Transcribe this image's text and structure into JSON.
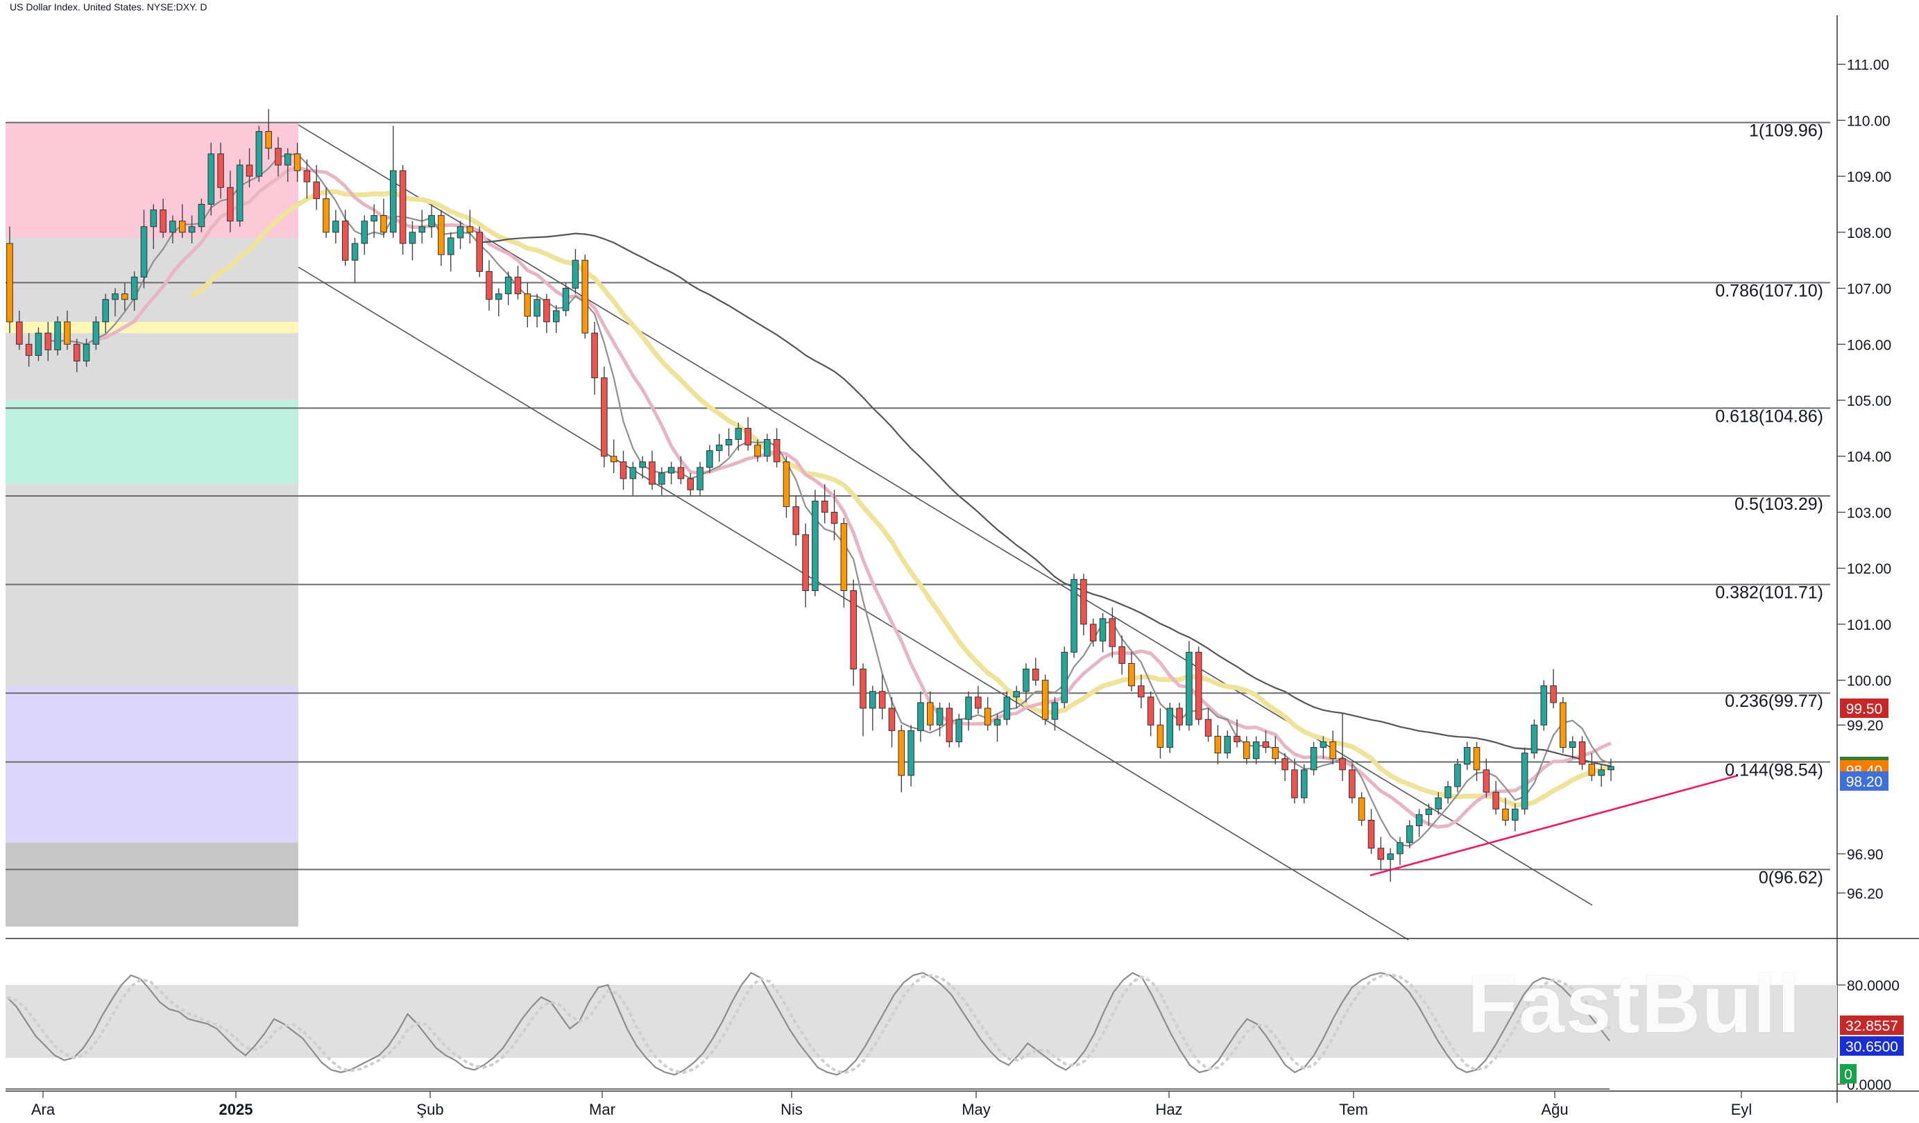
{
  "header": {
    "symbol_title": "US Dollar Index. United States. NYSE:DXY. D"
  },
  "watermark": "FastBull",
  "chart_data": {
    "type": "candlestick",
    "title": "US Dollar Index. United States. NYSE:DXY. D",
    "y_range": [
      95.4,
      111.9
    ],
    "price_axis_ticks": [
      {
        "value": 111.0,
        "label": "111.00"
      },
      {
        "value": 110.0,
        "label": "110.00"
      },
      {
        "value": 109.0,
        "label": "109.00"
      },
      {
        "value": 108.0,
        "label": "108.00"
      },
      {
        "value": 107.0,
        "label": "107.00"
      },
      {
        "value": 106.0,
        "label": "106.00"
      },
      {
        "value": 105.0,
        "label": "105.00"
      },
      {
        "value": 104.0,
        "label": "104.00"
      },
      {
        "value": 103.0,
        "label": "103.00"
      },
      {
        "value": 102.0,
        "label": "102.00"
      },
      {
        "value": 101.0,
        "label": "101.00"
      },
      {
        "value": 100.0,
        "label": "100.00"
      },
      {
        "value": 99.2,
        "label": "99.20"
      },
      {
        "value": 96.9,
        "label": "96.90"
      },
      {
        "value": 96.2,
        "label": "96.20"
      }
    ],
    "time_axis": [
      {
        "label": "Ara",
        "bold": false
      },
      {
        "label": "2025",
        "bold": true
      },
      {
        "label": "Şub",
        "bold": false
      },
      {
        "label": "Mar",
        "bold": false
      },
      {
        "label": "Nis",
        "bold": false
      },
      {
        "label": "May",
        "bold": false
      },
      {
        "label": "Haz",
        "bold": false
      },
      {
        "label": "Tem",
        "bold": false
      },
      {
        "label": "Ağu",
        "bold": false
      },
      {
        "label": "Eyl",
        "bold": false
      }
    ],
    "fibonacci": [
      {
        "ratio": "1",
        "value": 109.96,
        "label": "1(109.96)"
      },
      {
        "ratio": "0.786",
        "value": 107.1,
        "label": "0.786(107.10)"
      },
      {
        "ratio": "0.618",
        "value": 104.86,
        "label": "0.618(104.86)"
      },
      {
        "ratio": "0.5",
        "value": 103.29,
        "label": "0.5(103.29)"
      },
      {
        "ratio": "0.382",
        "value": 101.71,
        "label": "0.382(101.71)"
      },
      {
        "ratio": "0.236",
        "value": 99.77,
        "label": "0.236(99.77)"
      },
      {
        "ratio": "0.144",
        "value": 98.54,
        "label": "0.144(98.54)"
      },
      {
        "ratio": "0",
        "value": 96.62,
        "label": "0(96.62)"
      }
    ],
    "price_badges": [
      {
        "label": "99.50",
        "value": 99.5,
        "color": "#c62828"
      },
      {
        "label": "98.46",
        "value": 98.46,
        "color": "#2e7d32"
      },
      {
        "label": "98.40",
        "value": 98.4,
        "color": "#f57c00"
      },
      {
        "label": "98.20",
        "value": 98.2,
        "color": "#3f6fd8"
      }
    ],
    "candle_colors": {
      "up": "#26a69a",
      "down": "#ef5350",
      "down_alt": "#ff9800"
    },
    "ohlc": [
      [
        107.8,
        108.1,
        106.2,
        106.4
      ],
      [
        106.4,
        106.6,
        105.9,
        106.0
      ],
      [
        106.0,
        106.2,
        105.6,
        105.8
      ],
      [
        105.8,
        106.3,
        105.7,
        106.2
      ],
      [
        106.2,
        106.4,
        105.7,
        105.9
      ],
      [
        105.9,
        106.5,
        105.8,
        106.4
      ],
      [
        106.4,
        106.6,
        105.9,
        106.0
      ],
      [
        106.0,
        106.1,
        105.5,
        105.7
      ],
      [
        105.7,
        106.1,
        105.6,
        106.0
      ],
      [
        106.0,
        106.5,
        105.9,
        106.4
      ],
      [
        106.4,
        106.9,
        106.2,
        106.8
      ],
      [
        106.8,
        107.0,
        106.5,
        106.9
      ],
      [
        106.9,
        107.1,
        106.6,
        106.8
      ],
      [
        106.8,
        107.3,
        106.6,
        107.2
      ],
      [
        107.2,
        108.4,
        107.0,
        108.1
      ],
      [
        108.1,
        108.5,
        107.7,
        108.4
      ],
      [
        108.4,
        108.6,
        107.9,
        108.0
      ],
      [
        108.0,
        108.3,
        107.8,
        108.2
      ],
      [
        108.2,
        108.5,
        107.9,
        108.0
      ],
      [
        108.0,
        108.3,
        107.8,
        108.1
      ],
      [
        108.1,
        108.6,
        108.0,
        108.5
      ],
      [
        108.5,
        109.6,
        108.3,
        109.4
      ],
      [
        109.4,
        109.6,
        108.6,
        108.8
      ],
      [
        108.8,
        109.1,
        108.0,
        108.2
      ],
      [
        108.2,
        109.3,
        108.1,
        109.2
      ],
      [
        109.2,
        109.5,
        108.8,
        109.0
      ],
      [
        109.0,
        109.9,
        108.9,
        109.8
      ],
      [
        109.8,
        110.2,
        109.3,
        109.5
      ],
      [
        109.5,
        109.7,
        109.0,
        109.2
      ],
      [
        109.2,
        109.5,
        108.9,
        109.4
      ],
      [
        109.4,
        109.6,
        108.9,
        109.1
      ],
      [
        109.1,
        109.3,
        108.6,
        108.9
      ],
      [
        108.9,
        109.2,
        108.4,
        108.6
      ],
      [
        108.6,
        108.8,
        107.9,
        108.0
      ],
      [
        108.0,
        108.4,
        107.8,
        108.2
      ],
      [
        108.2,
        108.4,
        107.4,
        107.5
      ],
      [
        107.5,
        107.9,
        107.1,
        107.8
      ],
      [
        107.8,
        108.3,
        107.6,
        108.2
      ],
      [
        108.2,
        108.5,
        107.9,
        108.3
      ],
      [
        108.3,
        108.6,
        107.9,
        108.0
      ],
      [
        108.0,
        109.9,
        107.9,
        109.1
      ],
      [
        109.1,
        109.2,
        107.6,
        107.8
      ],
      [
        107.8,
        108.2,
        107.5,
        108.0
      ],
      [
        108.0,
        108.4,
        107.8,
        108.1
      ],
      [
        108.1,
        108.5,
        107.9,
        108.3
      ],
      [
        108.3,
        108.4,
        107.4,
        107.6
      ],
      [
        107.6,
        108.0,
        107.3,
        107.9
      ],
      [
        107.9,
        108.2,
        107.7,
        108.1
      ],
      [
        108.1,
        108.4,
        107.8,
        108.0
      ],
      [
        108.0,
        108.1,
        107.2,
        107.3
      ],
      [
        107.3,
        107.5,
        106.6,
        106.8
      ],
      [
        106.8,
        107.0,
        106.5,
        106.9
      ],
      [
        106.9,
        107.3,
        106.7,
        107.2
      ],
      [
        107.2,
        107.4,
        106.8,
        106.9
      ],
      [
        106.9,
        107.1,
        106.3,
        106.5
      ],
      [
        106.5,
        106.9,
        106.3,
        106.8
      ],
      [
        106.8,
        106.9,
        106.2,
        106.4
      ],
      [
        106.4,
        106.7,
        106.2,
        106.6
      ],
      [
        106.6,
        107.1,
        106.5,
        107.0
      ],
      [
        107.0,
        107.7,
        106.9,
        107.5
      ],
      [
        107.5,
        107.6,
        106.1,
        106.2
      ],
      [
        106.2,
        106.4,
        105.1,
        105.4
      ],
      [
        105.4,
        105.6,
        103.8,
        104.0
      ],
      [
        104.0,
        104.3,
        103.7,
        103.9
      ],
      [
        103.9,
        104.1,
        103.4,
        103.6
      ],
      [
        103.6,
        103.9,
        103.3,
        103.8
      ],
      [
        103.8,
        104.0,
        103.6,
        103.9
      ],
      [
        103.9,
        104.1,
        103.4,
        103.5
      ],
      [
        103.5,
        103.8,
        103.3,
        103.7
      ],
      [
        103.7,
        103.9,
        103.5,
        103.8
      ],
      [
        103.8,
        104.0,
        103.5,
        103.6
      ],
      [
        103.6,
        103.7,
        103.3,
        103.4
      ],
      [
        103.4,
        103.9,
        103.3,
        103.8
      ],
      [
        103.8,
        104.2,
        103.7,
        104.1
      ],
      [
        104.1,
        104.4,
        103.9,
        104.2
      ],
      [
        104.2,
        104.5,
        104.0,
        104.3
      ],
      [
        104.3,
        104.6,
        104.1,
        104.5
      ],
      [
        104.5,
        104.7,
        104.1,
        104.2
      ],
      [
        104.2,
        104.3,
        103.9,
        104.0
      ],
      [
        104.0,
        104.4,
        103.9,
        104.3
      ],
      [
        104.3,
        104.5,
        103.8,
        103.9
      ],
      [
        103.9,
        104.0,
        102.9,
        103.1
      ],
      [
        103.1,
        103.3,
        102.4,
        102.6
      ],
      [
        102.6,
        102.8,
        101.3,
        101.6
      ],
      [
        101.6,
        103.4,
        101.5,
        103.2
      ],
      [
        103.2,
        103.5,
        102.8,
        103.0
      ],
      [
        103.0,
        103.4,
        102.5,
        102.8
      ],
      [
        102.8,
        102.9,
        101.3,
        101.6
      ],
      [
        101.6,
        101.8,
        99.9,
        100.2
      ],
      [
        100.2,
        100.3,
        99.0,
        99.5
      ],
      [
        99.5,
        99.9,
        99.1,
        99.8
      ],
      [
        99.8,
        100.1,
        99.3,
        99.5
      ],
      [
        99.5,
        99.7,
        98.8,
        99.1
      ],
      [
        99.1,
        99.2,
        98.0,
        98.3
      ],
      [
        98.3,
        99.2,
        98.1,
        99.1
      ],
      [
        99.1,
        99.8,
        98.9,
        99.6
      ],
      [
        99.6,
        99.8,
        99.1,
        99.2
      ],
      [
        99.2,
        99.6,
        99.0,
        99.5
      ],
      [
        99.5,
        99.6,
        98.8,
        98.9
      ],
      [
        98.9,
        99.4,
        98.8,
        99.3
      ],
      [
        99.3,
        99.8,
        99.1,
        99.7
      ],
      [
        99.7,
        99.9,
        99.4,
        99.5
      ],
      [
        99.5,
        99.7,
        99.1,
        99.2
      ],
      [
        99.2,
        99.4,
        98.9,
        99.3
      ],
      [
        99.3,
        99.8,
        99.2,
        99.7
      ],
      [
        99.7,
        99.9,
        99.5,
        99.8
      ],
      [
        99.8,
        100.3,
        99.6,
        100.2
      ],
      [
        100.2,
        100.4,
        99.9,
        100.0
      ],
      [
        100.0,
        100.1,
        99.2,
        99.3
      ],
      [
        99.3,
        99.7,
        99.1,
        99.6
      ],
      [
        99.6,
        100.6,
        99.5,
        100.5
      ],
      [
        100.5,
        101.9,
        100.4,
        101.8
      ],
      [
        101.8,
        101.9,
        100.8,
        101.0
      ],
      [
        101.0,
        101.1,
        100.6,
        100.7
      ],
      [
        100.7,
        101.2,
        100.5,
        101.1
      ],
      [
        101.1,
        101.3,
        100.4,
        100.6
      ],
      [
        100.6,
        100.8,
        100.1,
        100.3
      ],
      [
        100.3,
        100.5,
        99.8,
        99.9
      ],
      [
        99.9,
        100.1,
        99.5,
        99.7
      ],
      [
        99.7,
        99.8,
        99.0,
        99.2
      ],
      [
        99.2,
        99.5,
        98.6,
        98.8
      ],
      [
        98.8,
        99.6,
        98.7,
        99.5
      ],
      [
        99.5,
        99.6,
        99.1,
        99.2
      ],
      [
        99.2,
        100.7,
        99.1,
        100.5
      ],
      [
        100.5,
        100.6,
        99.2,
        99.3
      ],
      [
        99.3,
        99.5,
        98.9,
        99.0
      ],
      [
        99.0,
        99.2,
        98.5,
        98.7
      ],
      [
        98.7,
        99.1,
        98.6,
        99.0
      ],
      [
        99.0,
        99.3,
        98.8,
        98.9
      ],
      [
        98.9,
        99.0,
        98.5,
        98.6
      ],
      [
        98.6,
        99.0,
        98.5,
        98.9
      ],
      [
        98.9,
        99.1,
        98.7,
        98.8
      ],
      [
        98.8,
        99.0,
        98.5,
        98.6
      ],
      [
        98.6,
        98.7,
        98.2,
        98.4
      ],
      [
        98.4,
        98.6,
        97.8,
        97.9
      ],
      [
        97.9,
        98.5,
        97.8,
        98.4
      ],
      [
        98.4,
        98.9,
        98.3,
        98.8
      ],
      [
        98.8,
        99.0,
        98.6,
        98.9
      ],
      [
        98.9,
        99.1,
        98.5,
        98.6
      ],
      [
        98.6,
        99.4,
        98.2,
        98.4
      ],
      [
        98.4,
        98.5,
        97.8,
        97.9
      ],
      [
        97.9,
        98.0,
        97.4,
        97.5
      ],
      [
        97.5,
        97.7,
        96.9,
        97.0
      ],
      [
        97.0,
        97.2,
        96.6,
        96.8
      ],
      [
        96.8,
        97.0,
        96.4,
        96.9
      ],
      [
        96.9,
        97.2,
        96.7,
        97.1
      ],
      [
        97.1,
        97.5,
        97.0,
        97.4
      ],
      [
        97.4,
        97.7,
        97.2,
        97.6
      ],
      [
        97.6,
        97.8,
        97.4,
        97.7
      ],
      [
        97.7,
        98.0,
        97.6,
        97.9
      ],
      [
        97.9,
        98.2,
        97.8,
        98.1
      ],
      [
        98.1,
        98.6,
        98.0,
        98.5
      ],
      [
        98.5,
        98.9,
        98.4,
        98.8
      ],
      [
        98.8,
        98.9,
        98.2,
        98.4
      ],
      [
        98.4,
        98.6,
        97.9,
        98.0
      ],
      [
        98.0,
        98.2,
        97.6,
        97.7
      ],
      [
        97.7,
        97.9,
        97.4,
        97.5
      ],
      [
        97.5,
        97.8,
        97.3,
        97.7
      ],
      [
        97.7,
        98.8,
        97.6,
        98.7
      ],
      [
        98.7,
        99.3,
        98.6,
        99.2
      ],
      [
        99.2,
        100.0,
        99.1,
        99.9
      ],
      [
        99.9,
        100.2,
        99.5,
        99.6
      ],
      [
        99.6,
        99.7,
        98.7,
        98.8
      ],
      [
        98.8,
        99.0,
        98.6,
        98.9
      ],
      [
        98.9,
        99.0,
        98.4,
        98.5
      ],
      [
        98.5,
        98.7,
        98.2,
        98.3
      ],
      [
        98.3,
        98.5,
        98.1,
        98.4
      ],
      [
        98.4,
        98.6,
        98.2,
        98.46
      ]
    ],
    "oscillator": {
      "levels": [
        {
          "value": 80,
          "label": "80.0000"
        },
        {
          "value": 0,
          "label": "0.0000"
        }
      ],
      "badges": [
        {
          "label": "32.8557",
          "color": "#c62828"
        },
        {
          "label": "30.6500",
          "color": "#1a2fd0"
        },
        {
          "label": "0",
          "color": "#16a34a"
        }
      ],
      "k": [
        70,
        62,
        50,
        38,
        30,
        22,
        18,
        20,
        28,
        40,
        55,
        68,
        80,
        88,
        85,
        76,
        66,
        60,
        58,
        52,
        50,
        48,
        44,
        36,
        28,
        22,
        30,
        40,
        52,
        48,
        42,
        36,
        26,
        16,
        10,
        8,
        10,
        14,
        18,
        22,
        30,
        42,
        56,
        48,
        38,
        28,
        22,
        18,
        12,
        10,
        14,
        20,
        28,
        40,
        52,
        62,
        70,
        66,
        55,
        44,
        50,
        66,
        78,
        80,
        62,
        44,
        30,
        20,
        12,
        8,
        6,
        10,
        16,
        24,
        36,
        50,
        66,
        80,
        90,
        86,
        72,
        58,
        44,
        32,
        22,
        12,
        8,
        6,
        10,
        18,
        30,
        44,
        58,
        72,
        82,
        88,
        90,
        86,
        80,
        72,
        60,
        48,
        36,
        26,
        18,
        14,
        22,
        32,
        26,
        20,
        14,
        10,
        16,
        26,
        40,
        58,
        74,
        84,
        90,
        86,
        72,
        56,
        40,
        26,
        14,
        8,
        10,
        18,
        30,
        42,
        52,
        48,
        38,
        26,
        14,
        8,
        12,
        22,
        36,
        52,
        66,
        78,
        84,
        88,
        90,
        88,
        82,
        74,
        62,
        48,
        34,
        22,
        12,
        8,
        10,
        18,
        30,
        44,
        58,
        72,
        82,
        86,
        84,
        78,
        70,
        62,
        54,
        44,
        34
      ]
    }
  }
}
